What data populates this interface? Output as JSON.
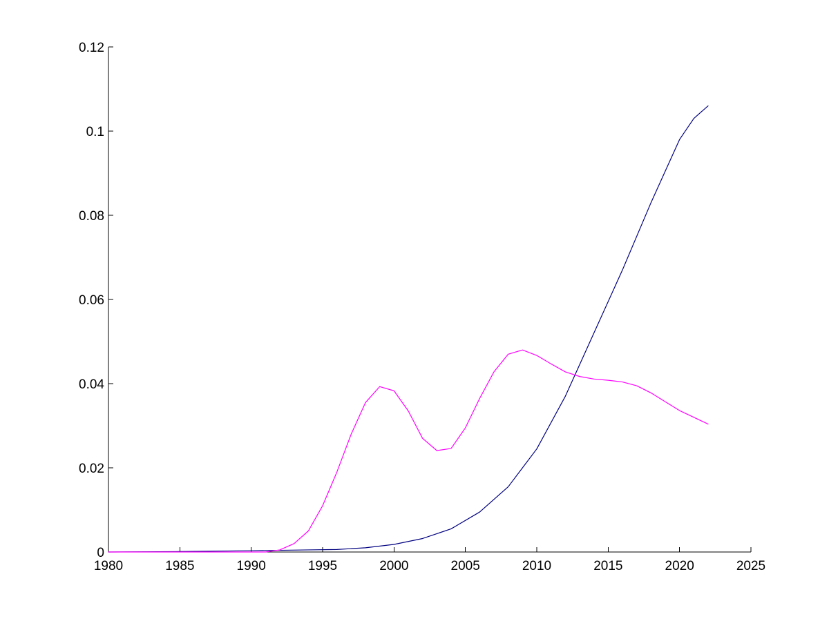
{
  "chart_data": {
    "type": "line",
    "title": "",
    "xlabel": "",
    "ylabel": "",
    "xlim": [
      1980,
      2025
    ],
    "ylim": [
      0,
      0.12
    ],
    "grid": false,
    "x_ticks": [
      "1980",
      "1985",
      "1990",
      "1995",
      "2000",
      "2005",
      "2010",
      "2015",
      "2020",
      "2025"
    ],
    "y_ticks": [
      "0",
      "0.02",
      "0.04",
      "0.06",
      "0.08",
      "0.1",
      "0.12"
    ],
    "series": [
      {
        "color": "#000080",
        "points": [
          [
            1980,
            0.0
          ],
          [
            1985,
            0.0001
          ],
          [
            1990,
            0.0003
          ],
          [
            1992,
            0.0004
          ],
          [
            1994,
            0.0005
          ],
          [
            1996,
            0.0006
          ],
          [
            1998,
            0.001
          ],
          [
            2000,
            0.0018
          ],
          [
            2002,
            0.0032
          ],
          [
            2004,
            0.0055
          ],
          [
            2006,
            0.0095
          ],
          [
            2008,
            0.0155
          ],
          [
            2010,
            0.0245
          ],
          [
            2012,
            0.037
          ],
          [
            2014,
            0.052
          ],
          [
            2016,
            0.067
          ],
          [
            2018,
            0.083
          ],
          [
            2020,
            0.098
          ],
          [
            2021,
            0.103
          ],
          [
            2022,
            0.106
          ]
        ]
      },
      {
        "color": "#ff00ff",
        "points": [
          [
            1980,
            0.0
          ],
          [
            1985,
            0.0
          ],
          [
            1990,
            0.0
          ],
          [
            1991,
            0.0
          ],
          [
            1992,
            0.0005
          ],
          [
            1993,
            0.002
          ],
          [
            1994,
            0.005
          ],
          [
            1995,
            0.011
          ],
          [
            1996,
            0.019
          ],
          [
            1997,
            0.028
          ],
          [
            1998,
            0.0355
          ],
          [
            1999,
            0.0393
          ],
          [
            2000,
            0.0383
          ],
          [
            2001,
            0.0335
          ],
          [
            2002,
            0.027
          ],
          [
            2003,
            0.0241
          ],
          [
            2004,
            0.0246
          ],
          [
            2005,
            0.0295
          ],
          [
            2006,
            0.0365
          ],
          [
            2007,
            0.0428
          ],
          [
            2008,
            0.047
          ],
          [
            2009,
            0.048
          ],
          [
            2010,
            0.0467
          ],
          [
            2011,
            0.0447
          ],
          [
            2012,
            0.0428
          ],
          [
            2013,
            0.0417
          ],
          [
            2014,
            0.0411
          ],
          [
            2015,
            0.0408
          ],
          [
            2016,
            0.0404
          ],
          [
            2017,
            0.0395
          ],
          [
            2018,
            0.0378
          ],
          [
            2019,
            0.0357
          ],
          [
            2020,
            0.0336
          ],
          [
            2021,
            0.032
          ],
          [
            2022,
            0.0304
          ]
        ]
      }
    ]
  }
}
